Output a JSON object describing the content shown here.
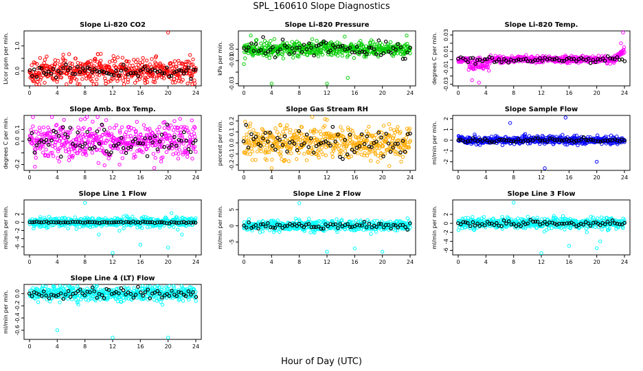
{
  "title": "SPL_160610  Slope Diagnostics",
  "xlabel": "Hour of Day (UTC)",
  "chart_data": [
    {
      "type": "scatter",
      "title": "Slope Li-820 CO2",
      "ylabel": "Licor ppm per min.",
      "color": "#ff0000",
      "xlim": [
        0,
        24
      ],
      "ylim": [
        -0.6,
        1.6
      ],
      "yticks": [
        -0.0,
        0.5,
        1.0
      ],
      "ytick_labels": [
        "0.0",
        "",
        "1.0"
      ],
      "xticks": [
        0,
        4,
        8,
        12,
        16,
        20,
        24
      ],
      "spread": 0.25,
      "black_spread": 0.12,
      "outliers": [
        [
          20,
          1.55
        ],
        [
          17,
          -0.45
        ],
        [
          11,
          -0.4
        ]
      ]
    },
    {
      "type": "scatter",
      "title": "Slope Li-820 Pressure",
      "ylabel": "kPa per min.",
      "color": "#00cc00",
      "xlim": [
        0,
        24
      ],
      "ylim": [
        -0.032,
        0.016
      ],
      "yticks": [
        -0.03,
        -0.02,
        -0.01,
        0.0
      ],
      "ytick_labels": [
        "-0.03",
        "",
        "-0.01",
        "0.00"
      ],
      "xticks": [
        0,
        4,
        8,
        12,
        16,
        20,
        24
      ],
      "spread": 0.003,
      "black_spread": 0.004,
      "outliers": [
        [
          4,
          -0.03
        ],
        [
          12,
          -0.03
        ],
        [
          15,
          -0.025
        ],
        [
          1,
          0.012
        ],
        [
          23.5,
          0.012
        ],
        [
          0,
          -0.013
        ]
      ]
    },
    {
      "type": "scatter",
      "title": "Slope Li-820 Temp.",
      "ylabel": "degrees C per min.",
      "color": "#ff00ff",
      "xlim": [
        0,
        24
      ],
      "ylim": [
        -0.032,
        0.035
      ],
      "yticks": [
        -0.03,
        -0.02,
        -0.01,
        0.0,
        0.01,
        0.02,
        0.03
      ],
      "ytick_labels": [
        "-0.03",
        "",
        "-0.01",
        "",
        "0.01",
        "",
        "0.03"
      ],
      "xticks": [
        0,
        4,
        8,
        12,
        16,
        20,
        24
      ],
      "spread": 0.002,
      "black_spread": 0.002,
      "outliers": [
        [
          23.8,
          0.033
        ],
        [
          23.5,
          0.02
        ],
        [
          2,
          -0.025
        ],
        [
          3,
          -0.028
        ]
      ]
    },
    {
      "type": "scatter",
      "title": "Slope Amb. Box Temp.",
      "ylabel": "degrees C per min.",
      "color": "#ff00ff",
      "xlim": [
        0,
        24
      ],
      "ylim": [
        -0.25,
        0.22
      ],
      "yticks": [
        -0.2,
        -0.1,
        0.0,
        0.1
      ],
      "ytick_labels": [
        "-0.2",
        "",
        "0.0",
        "0.1"
      ],
      "xticks": [
        0,
        4,
        8,
        12,
        16,
        20,
        24
      ],
      "spread": 0.08,
      "black_spread": 0.06,
      "outliers": [
        [
          8,
          0.19
        ],
        [
          13,
          -0.2
        ],
        [
          18,
          -0.23
        ]
      ]
    },
    {
      "type": "scatter",
      "title": "Slope Gas Stream RH",
      "ylabel": "percent per min.",
      "color": "#ffaa00",
      "xlim": [
        0,
        24
      ],
      "ylim": [
        -0.25,
        0.25
      ],
      "yticks": [
        -0.2,
        -0.1,
        0.0,
        0.1,
        0.2
      ],
      "ytick_labels": [
        "-0.2",
        "-0.1",
        "0.0",
        "0.1",
        "0.2"
      ],
      "xticks": [
        0,
        4,
        8,
        12,
        16,
        20,
        24
      ],
      "spread": 0.07,
      "black_spread": 0.06,
      "outliers": [
        [
          12,
          0.21
        ],
        [
          4,
          -0.23
        ],
        [
          21,
          -0.21
        ]
      ]
    },
    {
      "type": "scatter",
      "title": "Slope Sample Flow",
      "ylabel": "ml/min per min.",
      "color": "#0000ff",
      "xlim": [
        0,
        24
      ],
      "ylim": [
        -2.8,
        2.3
      ],
      "yticks": [
        -2,
        -1,
        0,
        1,
        2
      ],
      "ytick_labels": [
        "-2",
        "-1",
        "0",
        "1",
        "2"
      ],
      "xticks": [
        0,
        4,
        8,
        12,
        16,
        20,
        24
      ],
      "spread": 0.18,
      "black_spread": 0.1,
      "outliers": [
        [
          12.5,
          -2.6
        ],
        [
          15.5,
          2.1
        ],
        [
          7.5,
          1.6
        ],
        [
          20,
          -2.0
        ]
      ]
    },
    {
      "type": "scatter",
      "title": "Slope Line 1 Flow",
      "ylabel": "ml/min per min.",
      "color": "#00ffff",
      "xlim": [
        0,
        24
      ],
      "ylim": [
        -8,
        5.5
      ],
      "yticks": [
        -6,
        -4,
        -2,
        0,
        2
      ],
      "ytick_labels": [
        "-6",
        "-4",
        "-2",
        "0",
        "2"
      ],
      "xticks": [
        0,
        4,
        8,
        12,
        16,
        20,
        24
      ],
      "spread": 0.6,
      "black_spread": 0.1,
      "outliers": [
        [
          8,
          4.8
        ],
        [
          12,
          -7.5
        ],
        [
          16,
          -5.5
        ],
        [
          20,
          -6.2
        ],
        [
          10,
          -3
        ],
        [
          22,
          -3
        ]
      ]
    },
    {
      "type": "scatter",
      "title": "Slope Line 2 Flow",
      "ylabel": "ml/min per min.",
      "color": "#00ffff",
      "xlim": [
        0,
        24
      ],
      "ylim": [
        -9,
        8
      ],
      "yticks": [
        -5,
        0,
        5
      ],
      "ytick_labels": [
        "-5",
        "0",
        "5"
      ],
      "xticks": [
        0,
        4,
        8,
        12,
        16,
        20,
        24
      ],
      "spread": 0.8,
      "black_spread": 0.5,
      "outliers": [
        [
          8,
          7
        ],
        [
          12,
          -8
        ],
        [
          16,
          -7
        ],
        [
          20,
          -8
        ]
      ]
    },
    {
      "type": "scatter",
      "title": "Slope Line 3 Flow",
      "ylabel": "ml/min per min.",
      "color": "#00ffff",
      "xlim": [
        0,
        24
      ],
      "ylim": [
        -7,
        5.2
      ],
      "yticks": [
        -6,
        -4,
        -2,
        0,
        2
      ],
      "ytick_labels": [
        "-6",
        "-4",
        "-2",
        "0",
        "2"
      ],
      "xticks": [
        0,
        4,
        8,
        12,
        16,
        20,
        24
      ],
      "spread": 0.6,
      "black_spread": 0.35,
      "outliers": [
        [
          8,
          4.6
        ],
        [
          12,
          -6.6
        ],
        [
          16,
          -5
        ],
        [
          20,
          -5.5
        ],
        [
          20.5,
          -4
        ]
      ]
    },
    {
      "type": "scatter",
      "title": "Slope Line 4 (LT) Flow",
      "ylabel": "ml/min per min.",
      "color": "#00ffff",
      "xlim": [
        0,
        24
      ],
      "ylim": [
        -0.75,
        0.15
      ],
      "yticks": [
        -0.6,
        -0.4,
        -0.2,
        0.0
      ],
      "ytick_labels": [
        "-0.6",
        "-0.4",
        "-0.2",
        "0.0"
      ],
      "xticks": [
        0,
        4,
        8,
        12,
        16,
        20,
        24
      ],
      "spread": 0.06,
      "black_spread": 0.04,
      "outliers": [
        [
          4,
          -0.6
        ],
        [
          12,
          -0.72
        ],
        [
          20,
          -0.72
        ]
      ]
    }
  ]
}
